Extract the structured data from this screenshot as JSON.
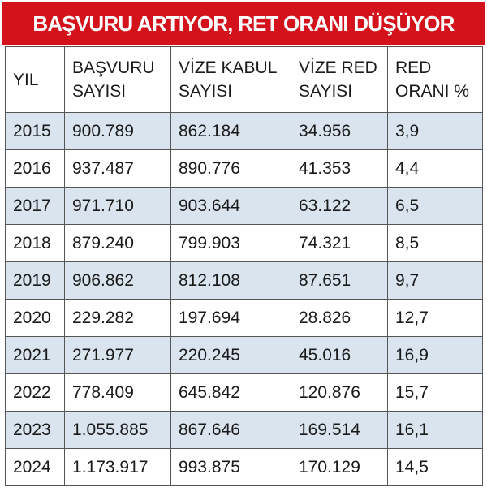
{
  "header": {
    "title": "BAŞVURU ARTIYOR, RET ORANI DÜŞÜYOR"
  },
  "table": {
    "columns": [
      [
        "YIL"
      ],
      [
        "BAŞVURU",
        "SAYISI"
      ],
      [
        "VİZE KABUL",
        "SAYISI"
      ],
      [
        "VİZE RED",
        "SAYISI"
      ],
      [
        "RED",
        "ORANI %"
      ]
    ],
    "rows": [
      [
        "2015",
        "900.789",
        "862.184",
        "34.956",
        "3,9"
      ],
      [
        "2016",
        "937.487",
        "890.776",
        "41.353",
        "4,4"
      ],
      [
        "2017",
        "971.710",
        "903.644",
        "63.122",
        "6,5"
      ],
      [
        "2018",
        "879.240",
        "799.903",
        "74.321",
        "8,5"
      ],
      [
        "2019",
        "906.862",
        "812.108",
        "87.651",
        "9,7"
      ],
      [
        "2020",
        "229.282",
        "197.694",
        "28.826",
        "12,7"
      ],
      [
        "2021",
        "271.977",
        "220.245",
        "45.016",
        "16,9"
      ],
      [
        "2022",
        "778.409",
        "645.842",
        "120.876",
        "15,7"
      ],
      [
        "2023",
        "1.055.885",
        "867.646",
        "169.514",
        "16,1"
      ],
      [
        "2024",
        "1.173.917",
        "993.875",
        "170.129",
        "14,5"
      ]
    ]
  }
}
